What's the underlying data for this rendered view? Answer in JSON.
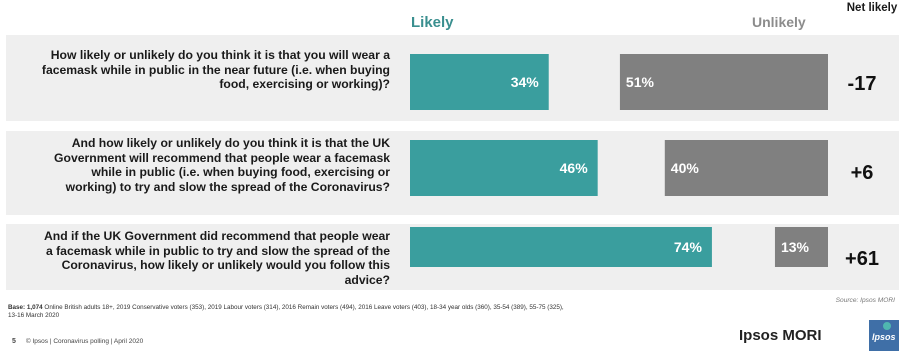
{
  "headers": {
    "likely": "Likely",
    "unlikely": "Unlikely",
    "net": "Net likely"
  },
  "questions": [
    "How likely or unlikely do you think it is that you will wear a facemask while in public in the near future (i.e. when buying food, exercising or working)?",
    "And how likely or unlikely do you think it is that the UK Government will recommend that people wear a facemask while in public (i.e. when buying food, exercising or working) to try and slow the spread of the Coronavirus?",
    "And if the UK Government did recommend that people wear a facemask while in public to try and slow the spread of the Coronavirus, how likely or unlikely would you follow this advice?"
  ],
  "chart_data": {
    "type": "bar",
    "categories": [
      "Q1",
      "Q2",
      "Q3"
    ],
    "series": [
      {
        "name": "Likely",
        "values": [
          34,
          46,
          74
        ],
        "labels": [
          "34%",
          "46%",
          "74%"
        ],
        "color": "#3a9e9e"
      },
      {
        "name": "Unlikely",
        "values": [
          51,
          40,
          13
        ],
        "labels": [
          "51%",
          "40%",
          "13%"
        ],
        "color": "#808080"
      }
    ],
    "net_likely": [
      "-17",
      "+6",
      "+61"
    ],
    "xlim": [
      0,
      100
    ]
  },
  "footnote": {
    "base_label": "Base: 1,074",
    "base_text": " Online British adults 18+, 2019 Conservative voters (353), 2019 Labour voters (314), 2016 Remain voters (494), 2016 Leave voters (403), 18-34 year olds (360), 35-54 (389), 55-75 (325), 13-16 March 2020"
  },
  "source": "Source: Ipsos MORI",
  "footer": {
    "page": "5",
    "text": "© Ipsos | Coronavirus polling | April 2020"
  },
  "brand": {
    "name": "Ipsos MORI",
    "logo_text": "Ipsos"
  }
}
